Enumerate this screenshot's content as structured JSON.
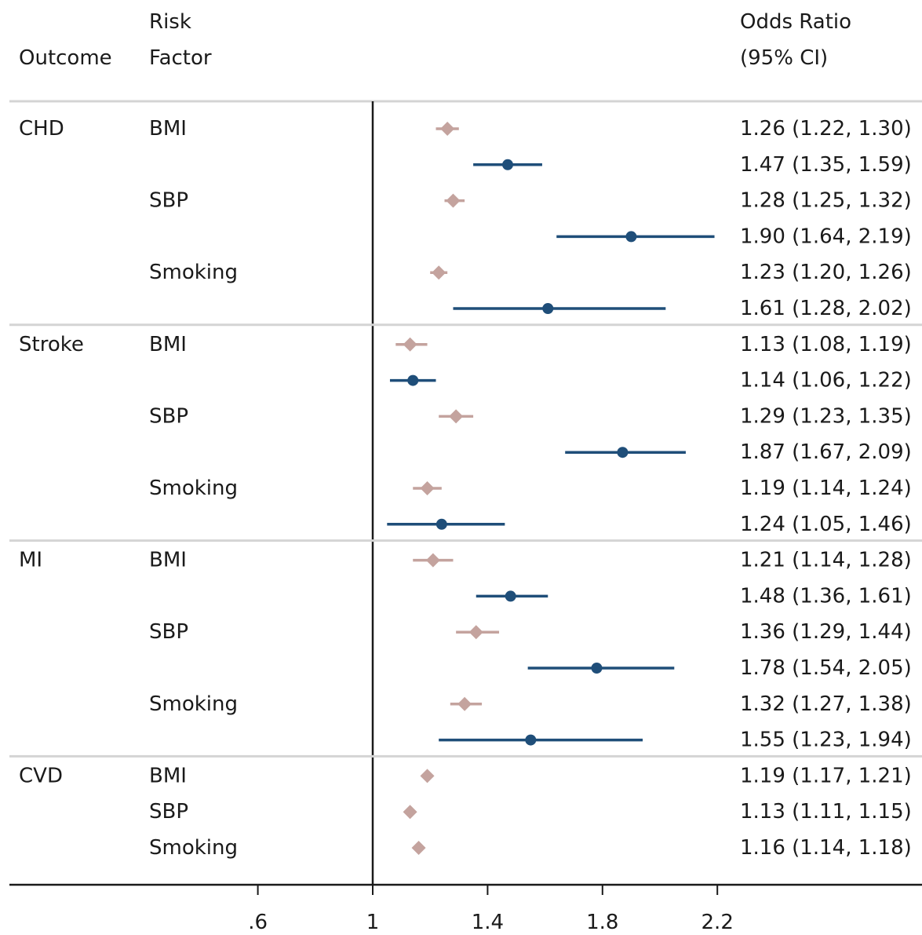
{
  "chart_data": {
    "type": "forest",
    "headers": {
      "outcome": "Outcome",
      "risk_factor_line1": "Risk",
      "risk_factor_line2": "Factor",
      "or_line1": "Odds Ratio",
      "or_line2": "(95% CI)"
    },
    "x_ticks": [
      {
        "value": 0.6,
        "label": ".6"
      },
      {
        "value": 1.0,
        "label": "1"
      },
      {
        "value": 1.4,
        "label": "1.4"
      },
      {
        "value": 1.8,
        "label": "1.8"
      },
      {
        "value": 2.2,
        "label": "2.2"
      }
    ],
    "xlim": [
      0.2,
      2.9
    ],
    "reference_line": 1,
    "series_styles": {
      "a": {
        "marker": "diamond",
        "color": "#c4a39e"
      },
      "b": {
        "marker": "circle",
        "color": "#1f4e79"
      }
    },
    "groups": [
      {
        "outcome": "CHD",
        "rows": [
          {
            "risk_factor": "BMI",
            "series": "a",
            "or": 1.26,
            "lo": 1.22,
            "hi": 1.3,
            "text": "1.26 (1.22, 1.30)"
          },
          {
            "risk_factor": "",
            "series": "b",
            "or": 1.47,
            "lo": 1.35,
            "hi": 1.59,
            "text": "1.47 (1.35, 1.59)"
          },
          {
            "risk_factor": "SBP",
            "series": "a",
            "or": 1.28,
            "lo": 1.25,
            "hi": 1.32,
            "text": "1.28 (1.25, 1.32)"
          },
          {
            "risk_factor": "",
            "series": "b",
            "or": 1.9,
            "lo": 1.64,
            "hi": 2.19,
            "text": "1.90 (1.64, 2.19)"
          },
          {
            "risk_factor": "Smoking",
            "series": "a",
            "or": 1.23,
            "lo": 1.2,
            "hi": 1.26,
            "text": "1.23 (1.20, 1.26)"
          },
          {
            "risk_factor": "",
            "series": "b",
            "or": 1.61,
            "lo": 1.28,
            "hi": 2.02,
            "text": "1.61 (1.28, 2.02)"
          }
        ]
      },
      {
        "outcome": "Stroke",
        "rows": [
          {
            "risk_factor": "BMI",
            "series": "a",
            "or": 1.13,
            "lo": 1.08,
            "hi": 1.19,
            "text": "1.13 (1.08, 1.19)"
          },
          {
            "risk_factor": "",
            "series": "b",
            "or": 1.14,
            "lo": 1.06,
            "hi": 1.22,
            "text": "1.14 (1.06, 1.22)"
          },
          {
            "risk_factor": "SBP",
            "series": "a",
            "or": 1.29,
            "lo": 1.23,
            "hi": 1.35,
            "text": "1.29 (1.23, 1.35)"
          },
          {
            "risk_factor": "",
            "series": "b",
            "or": 1.87,
            "lo": 1.67,
            "hi": 2.09,
            "text": "1.87 (1.67, 2.09)"
          },
          {
            "risk_factor": "Smoking",
            "series": "a",
            "or": 1.19,
            "lo": 1.14,
            "hi": 1.24,
            "text": "1.19 (1.14, 1.24)"
          },
          {
            "risk_factor": "",
            "series": "b",
            "or": 1.24,
            "lo": 1.05,
            "hi": 1.46,
            "text": "1.24 (1.05, 1.46)"
          }
        ]
      },
      {
        "outcome": "MI",
        "rows": [
          {
            "risk_factor": "BMI",
            "series": "a",
            "or": 1.21,
            "lo": 1.14,
            "hi": 1.28,
            "text": "1.21 (1.14, 1.28)"
          },
          {
            "risk_factor": "",
            "series": "b",
            "or": 1.48,
            "lo": 1.36,
            "hi": 1.61,
            "text": "1.48 (1.36, 1.61)"
          },
          {
            "risk_factor": "SBP",
            "series": "a",
            "or": 1.36,
            "lo": 1.29,
            "hi": 1.44,
            "text": "1.36 (1.29, 1.44)"
          },
          {
            "risk_factor": "",
            "series": "b",
            "or": 1.78,
            "lo": 1.54,
            "hi": 2.05,
            "text": "1.78 (1.54, 2.05)"
          },
          {
            "risk_factor": "Smoking",
            "series": "a",
            "or": 1.32,
            "lo": 1.27,
            "hi": 1.38,
            "text": "1.32 (1.27, 1.38)"
          },
          {
            "risk_factor": "",
            "series": "b",
            "or": 1.55,
            "lo": 1.23,
            "hi": 1.94,
            "text": "1.55 (1.23, 1.94)"
          }
        ]
      },
      {
        "outcome": "CVD",
        "rows": [
          {
            "risk_factor": "BMI",
            "series": "a",
            "or": 1.19,
            "lo": 1.17,
            "hi": 1.21,
            "text": "1.19 (1.17, 1.21)"
          },
          {
            "risk_factor": "SBP",
            "series": "a",
            "or": 1.13,
            "lo": 1.11,
            "hi": 1.15,
            "text": "1.13 (1.11, 1.15)"
          },
          {
            "risk_factor": "Smoking",
            "series": "a",
            "or": 1.16,
            "lo": 1.14,
            "hi": 1.18,
            "text": "1.16 (1.14, 1.18)"
          }
        ]
      }
    ]
  }
}
